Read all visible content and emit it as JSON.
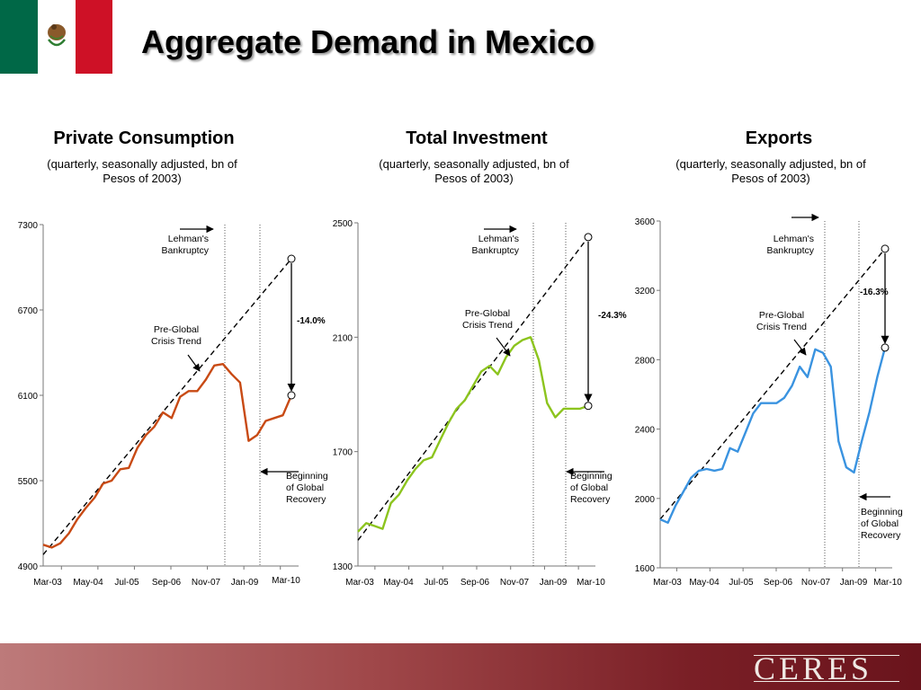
{
  "header": {
    "title": "Aggregate Demand in Mexico"
  },
  "footer": {
    "logo_text": "CERES"
  },
  "colors": {
    "flag_green": "#006847",
    "flag_white": "#ffffff",
    "flag_red": "#ce1126",
    "trend_line": "#000000"
  },
  "chart_data": [
    {
      "type": "line",
      "title": "Private Consumption",
      "subtitle": "(quarterly, seasonally adjusted, bn of Pesos of 2003)",
      "color": "#c84a14",
      "ylim": [
        4900,
        7300
      ],
      "yticks": [
        "7300",
        "6700",
        "6100",
        "5500",
        "4900"
      ],
      "xticks": [
        "Mar-03",
        "May-04",
        "Jul-05",
        "Sep-06",
        "Nov-07",
        "Jan-09",
        "Mar-10"
      ],
      "series": [
        {
          "values": [
            5050,
            5030,
            5060,
            5130,
            5230,
            5310,
            5380,
            5480,
            5500,
            5580,
            5590,
            5730,
            5820,
            5880,
            5980,
            5940,
            6090,
            6130,
            6130,
            6210,
            6310,
            6320,
            6250,
            6190,
            5780,
            5820,
            5920,
            5940,
            5960,
            6100
          ]
        }
      ],
      "trend": {
        "start": 4980,
        "end": 7060
      },
      "start_marker": 7060,
      "end_marker": 6100,
      "gap_label": "-14.0%",
      "annotations": {
        "lehman": "Lehman's Bankruptcy",
        "trend": "Pre-Global Crisis Trend",
        "recovery": "Beginning of Global Recovery"
      }
    },
    {
      "type": "line",
      "title": "Total Investment",
      "subtitle": "(quarterly, seasonally adjusted, bn of Pesos of 2003)",
      "color": "#8cc41e",
      "ylim": [
        1300,
        2500
      ],
      "yticks": [
        "2500",
        "2100",
        "1700",
        "1300"
      ],
      "xticks": [
        "Mar-03",
        "May-04",
        "Jul-05",
        "Sep-06",
        "Nov-07",
        "Jan-09",
        "Mar-10"
      ],
      "series": [
        {
          "values": [
            1420,
            1450,
            1440,
            1430,
            1520,
            1550,
            1600,
            1640,
            1670,
            1680,
            1740,
            1800,
            1850,
            1880,
            1930,
            1980,
            2000,
            1970,
            2030,
            2070,
            2090,
            2100,
            2020,
            1870,
            1820,
            1850,
            1850,
            1850,
            1860
          ]
        }
      ],
      "trend": {
        "start": 1390,
        "end": 2450
      },
      "start_marker": 2450,
      "end_marker": 1860,
      "gap_label": "-24.3%",
      "annotations": {
        "lehman": "Lehman's Bankruptcy",
        "trend": "Pre-Global Crisis Trend",
        "recovery": "Beginning of Global Recovery"
      }
    },
    {
      "type": "line",
      "title": "Exports",
      "subtitle": "(quarterly, seasonally adjusted, bn of Pesos of 2003)",
      "color": "#3a93e0",
      "ylim": [
        1600,
        3600
      ],
      "yticks": [
        "3600",
        "3200",
        "2800",
        "2400",
        "2000",
        "1600"
      ],
      "xticks": [
        "Mar-03",
        "May-04",
        "Jul-05",
        "Sep-06",
        "Nov-07",
        "Jan-09",
        "Mar-10"
      ],
      "series": [
        {
          "values": [
            1880,
            1860,
            1960,
            2040,
            2120,
            2160,
            2170,
            2160,
            2170,
            2290,
            2270,
            2380,
            2490,
            2550,
            2550,
            2550,
            2580,
            2650,
            2760,
            2700,
            2860,
            2840,
            2760,
            2330,
            2180,
            2150,
            2330,
            2500,
            2700,
            2870
          ]
        }
      ],
      "trend": {
        "start": 1880,
        "end": 3440
      },
      "start_marker": 3440,
      "end_marker": 2870,
      "gap_label": "-16.3%",
      "annotations": {
        "lehman": "Lehman's Bankruptcy",
        "trend": "Pre-Global Crisis Trend",
        "recovery": "Beginning of Global Recovery"
      }
    }
  ]
}
